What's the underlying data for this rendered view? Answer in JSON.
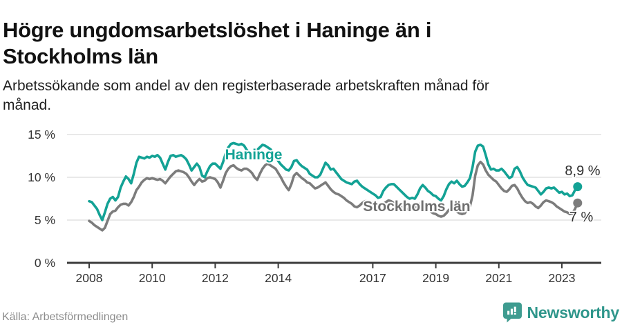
{
  "header": {
    "title_line1": "Högre ungdomsarbetslöshet i Haninge än i",
    "title_line2": "Stockholms län",
    "subtitle_line1": "Arbetssökande som andel av den registerbaserade arbetskraften månad för",
    "subtitle_line2": "månad."
  },
  "footer": {
    "source": "Källa: Arbetsförmedlingen",
    "brand": "Newsworthy"
  },
  "colors": {
    "haninge": "#13a295",
    "stockholm": "#7c7c7c",
    "stockholm_label": "#6f6f6f",
    "end_label": "#2d2d2d",
    "grid": "#dcdcdc",
    "axis": "#3a3a3a",
    "tick_label": "#333333",
    "brand_teal": "#2f968b",
    "brand_icon": "#3f9c90"
  },
  "chart_data": {
    "type": "line",
    "title": "Högre ungdomsarbetslöshet i Haninge än i Stockholms län",
    "subtitle": "Arbetssökande som andel av den registerbaserade arbetskraften månad för månad.",
    "x_start_year": 2008,
    "x_step": "month",
    "x_end_label_implied": "2023",
    "ylim": [
      0,
      15
    ],
    "grid": "horizontal-only",
    "legend_position": "inline-labels",
    "y_ticks": [
      {
        "label": "15 %",
        "value": 15
      },
      {
        "label": "10 %",
        "value": 10
      },
      {
        "label": "5 %",
        "value": 5
      },
      {
        "label": "0 %",
        "value": 0
      }
    ],
    "x_ticks": [
      {
        "label": "2008",
        "year": 2008
      },
      {
        "label": "2010",
        "year": 2010
      },
      {
        "label": "2012",
        "year": 2012
      },
      {
        "label": "2014",
        "year": 2014
      },
      {
        "label": "2017",
        "year": 2017
      },
      {
        "label": "2019",
        "year": 2019
      },
      {
        "label": "2021",
        "year": 2021
      },
      {
        "label": "2023",
        "year": 2023
      }
    ],
    "series": [
      {
        "name": "Haninge",
        "color": "#13a295",
        "label_color": "#13a295",
        "end_label": "8,9 %",
        "end_value": 8.9,
        "values": [
          7.2,
          7.1,
          6.7,
          6.3,
          5.6,
          5.0,
          5.9,
          6.9,
          7.5,
          7.7,
          7.3,
          7.7,
          8.8,
          9.5,
          10.1,
          9.8,
          9.3,
          10.4,
          11.7,
          12.4,
          12.3,
          12.2,
          12.4,
          12.3,
          12.5,
          12.4,
          12.6,
          12.3,
          11.6,
          10.9,
          11.8,
          12.5,
          12.6,
          12.4,
          12.5,
          12.6,
          12.4,
          12.1,
          11.5,
          10.8,
          11.2,
          11.6,
          11.2,
          10.2,
          10.0,
          10.7,
          11.3,
          11.6,
          11.6,
          11.3,
          11.0,
          11.8,
          12.8,
          13.5,
          13.9,
          14.0,
          13.9,
          13.8,
          13.9,
          13.7,
          13.2,
          12.9,
          12.7,
          12.9,
          13.2,
          13.5,
          13.8,
          13.7,
          13.5,
          13.3,
          12.9,
          12.5,
          11.9,
          11.5,
          11.2,
          10.9,
          10.8,
          11.2,
          11.9,
          12.0,
          11.6,
          11.3,
          11.1,
          10.9,
          10.4,
          10.2,
          10.0,
          10.0,
          10.3,
          11.0,
          11.7,
          11.4,
          10.9,
          11.0,
          10.6,
          10.2,
          9.8,
          9.6,
          9.4,
          9.3,
          9.2,
          9.5,
          9.6,
          9.2,
          8.9,
          8.7,
          8.5,
          8.3,
          8.1,
          7.9,
          7.6,
          7.7,
          8.4,
          8.8,
          9.1,
          9.2,
          9.2,
          8.9,
          8.6,
          8.3,
          8.0,
          7.7,
          7.5,
          7.6,
          7.5,
          8.0,
          8.7,
          9.1,
          8.8,
          8.4,
          8.2,
          7.9,
          7.8,
          7.5,
          7.3,
          7.8,
          8.6,
          9.2,
          9.5,
          9.3,
          9.6,
          9.2,
          8.9,
          9.0,
          9.4,
          9.9,
          11.2,
          13.0,
          13.7,
          13.8,
          13.6,
          12.6,
          11.5,
          10.9,
          11.0,
          10.8,
          10.8,
          11.0,
          10.7,
          10.3,
          9.9,
          10.1,
          11.0,
          11.2,
          10.7,
          10.0,
          9.5,
          9.1,
          9.0,
          8.9,
          8.8,
          8.4,
          8.0,
          8.3,
          8.7,
          8.8,
          8.7,
          8.8,
          8.5,
          8.2,
          8.3,
          8.0,
          8.1,
          7.8,
          7.9,
          8.5,
          8.9
        ]
      },
      {
        "name": "Stockholms län",
        "color": "#7c7c7c",
        "label_color": "#6f6f6f",
        "end_label": "7 %",
        "end_value": 7.0,
        "values": [
          4.9,
          4.7,
          4.4,
          4.2,
          4.0,
          3.8,
          4.1,
          4.9,
          5.7,
          6.0,
          6.1,
          6.5,
          6.8,
          6.9,
          6.9,
          6.7,
          7.1,
          7.7,
          8.5,
          8.9,
          9.4,
          9.7,
          9.9,
          9.8,
          9.9,
          9.8,
          9.7,
          9.8,
          9.6,
          9.3,
          9.7,
          10.1,
          10.4,
          10.7,
          10.8,
          10.7,
          10.6,
          10.4,
          10.0,
          9.5,
          9.1,
          9.5,
          9.8,
          9.5,
          9.6,
          9.9,
          10.0,
          9.9,
          9.8,
          9.4,
          8.8,
          9.6,
          10.5,
          11.0,
          11.3,
          11.4,
          11.1,
          10.9,
          10.8,
          11.0,
          11.0,
          10.8,
          10.5,
          10.0,
          9.7,
          10.4,
          11.0,
          11.4,
          11.6,
          11.4,
          11.2,
          11.0,
          10.5,
          10.0,
          9.4,
          8.9,
          8.5,
          9.2,
          10.2,
          10.5,
          10.2,
          9.9,
          9.7,
          9.4,
          9.3,
          9.0,
          8.7,
          8.8,
          9.0,
          9.2,
          9.4,
          9.0,
          8.6,
          8.3,
          8.1,
          8.0,
          7.8,
          7.6,
          7.3,
          7.1,
          6.9,
          6.6,
          6.5,
          6.7,
          7.0,
          7.2,
          7.2,
          7.1,
          7.0,
          6.9,
          6.8,
          6.8,
          6.9,
          7.1,
          7.3,
          7.2,
          7.0,
          6.8,
          6.6,
          6.5,
          6.4,
          6.3,
          6.2,
          6.2,
          6.3,
          6.6,
          6.9,
          6.8,
          6.5,
          6.2,
          6.0,
          5.8,
          5.7,
          5.5,
          5.4,
          5.5,
          5.8,
          6.2,
          6.4,
          6.2,
          6.0,
          5.8,
          5.7,
          5.8,
          6.2,
          6.6,
          7.9,
          10.2,
          11.4,
          11.8,
          11.5,
          10.8,
          10.3,
          10.0,
          9.7,
          9.5,
          9.1,
          8.7,
          8.4,
          8.3,
          8.6,
          9.0,
          9.1,
          8.7,
          8.1,
          7.6,
          7.2,
          7.0,
          7.1,
          6.9,
          6.6,
          6.4,
          6.7,
          7.1,
          7.3,
          7.2,
          7.1,
          6.9,
          6.6,
          6.4,
          6.2,
          6.0,
          5.9,
          5.7,
          5.8,
          6.3,
          7.0
        ]
      }
    ]
  }
}
